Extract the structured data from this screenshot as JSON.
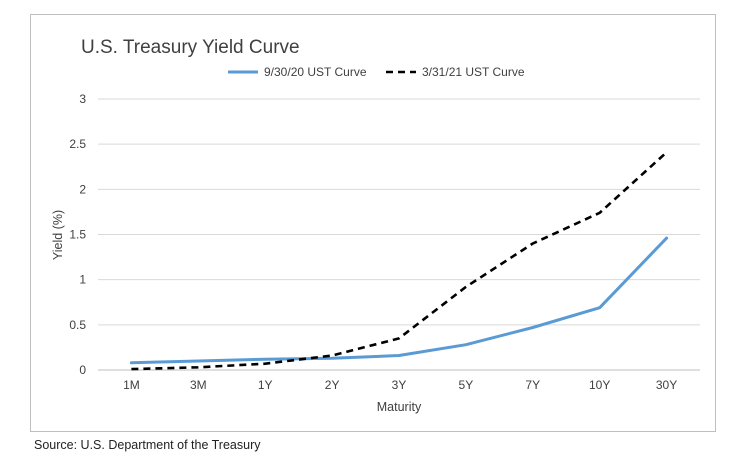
{
  "source_note": "Source: U.S. Department of the Treasury",
  "chart_data": {
    "type": "line",
    "title": "U.S. Treasury Yield Curve",
    "xlabel": "Maturity",
    "ylabel": "Yield (%)",
    "categories": [
      "1M",
      "3M",
      "1Y",
      "2Y",
      "3Y",
      "5Y",
      "7Y",
      "10Y",
      "30Y"
    ],
    "ylim": [
      0,
      3
    ],
    "yticks": [
      "0",
      "0.5",
      "1",
      "1.5",
      "2",
      "2.5",
      "3"
    ],
    "grid": true,
    "legend_position": "top",
    "series": [
      {
        "name": "9/30/20 UST Curve",
        "color": "#5b9bd5",
        "style": "solid",
        "values": [
          0.08,
          0.1,
          0.12,
          0.13,
          0.16,
          0.28,
          0.47,
          0.69,
          1.46
        ]
      },
      {
        "name": "3/31/21 UST Curve",
        "color": "#000000",
        "style": "dashed",
        "values": [
          0.01,
          0.03,
          0.07,
          0.16,
          0.35,
          0.92,
          1.4,
          1.74,
          2.41
        ]
      }
    ]
  }
}
